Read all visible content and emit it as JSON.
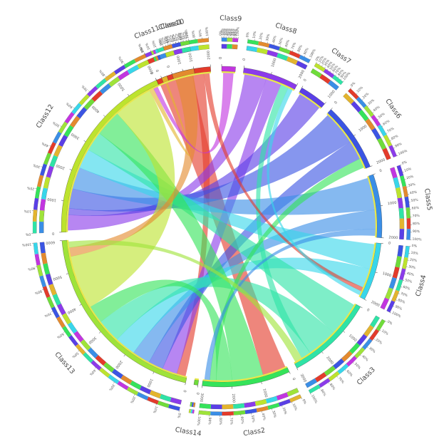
{
  "chart_data": {
    "type": "chord",
    "title": "",
    "segments": [
      {
        "name": "Class1",
        "color": "#e33b2b",
        "scale_max": 2000,
        "ticks": [
          "0",
          "1000",
          "2000"
        ]
      },
      {
        "name": "Class9",
        "color": "#c235e0",
        "scale_max": 0,
        "ticks": [
          "0"
        ]
      },
      {
        "name": "Class8",
        "color": "#8b3bea",
        "scale_max": 2000,
        "ticks": [
          "0",
          "1000",
          "2000"
        ]
      },
      {
        "name": "Class7",
        "color": "#5a3fe6",
        "scale_max": 1000,
        "ticks": [
          "0",
          "1000"
        ]
      },
      {
        "name": "Class6",
        "color": "#3b55e3",
        "scale_max": 2000,
        "ticks": [
          "0",
          "1000",
          "2000"
        ]
      },
      {
        "name": "Class5",
        "color": "#3a8ee6",
        "scale_max": 2000,
        "ticks": [
          "0",
          "1000",
          "2000"
        ]
      },
      {
        "name": "Class4",
        "color": "#38d6ea",
        "scale_max": 2000,
        "ticks": [
          "0",
          "1000",
          "2000"
        ]
      },
      {
        "name": "Class3",
        "color": "#2fe3a6",
        "scale_max": 3000,
        "ticks": [
          "0",
          "1000",
          "2000",
          "3000"
        ]
      },
      {
        "name": "Class2",
        "color": "#35e35a",
        "scale_max": 3000,
        "ticks": [
          "0",
          "1000",
          "2000",
          "3000"
        ]
      },
      {
        "name": "Class14",
        "color": "#6fdc3a",
        "scale_max": 0,
        "ticks": [
          "0"
        ]
      },
      {
        "name": "Class13",
        "color": "#9fe33a",
        "scale_max": 6000,
        "ticks": [
          "0",
          "1000",
          "2000",
          "3000",
          "4000",
          "5000",
          "6000"
        ]
      },
      {
        "name": "Class12",
        "color": "#bde32e",
        "scale_max": 6000,
        "ticks": [
          "0",
          "1000",
          "2000",
          "3000",
          "4000",
          "5000",
          "6000"
        ]
      },
      {
        "name": "Class11",
        "color": "#e3b42e",
        "scale_max": 0,
        "ticks": [
          "0"
        ]
      },
      {
        "name": "Class10",
        "color": "#e38a2e",
        "scale_max": 1000,
        "ticks": [
          "0",
          "1000"
        ]
      }
    ],
    "percent_ticks": [
      "0%",
      "10%",
      "20%",
      "30%",
      "40%",
      "50%",
      "60%",
      "70%",
      "80%",
      "90%",
      "100%"
    ],
    "links": [
      {
        "source": "Class1",
        "target": "Class2",
        "value": 900
      },
      {
        "source": "Class1",
        "target": "Class13",
        "value": 300
      },
      {
        "source": "Class8",
        "target": "Class12",
        "value": 700
      },
      {
        "source": "Class8",
        "target": "Class13",
        "value": 500
      },
      {
        "source": "Class7",
        "target": "Class12",
        "value": 300
      },
      {
        "source": "Class6",
        "target": "Class12",
        "value": 900
      },
      {
        "source": "Class6",
        "target": "Class13",
        "value": 500
      },
      {
        "source": "Class5",
        "target": "Class12",
        "value": 1000
      },
      {
        "source": "Class5",
        "target": "Class13",
        "value": 600
      },
      {
        "source": "Class4",
        "target": "Class12",
        "value": 900
      },
      {
        "source": "Class4",
        "target": "Class13",
        "value": 700
      },
      {
        "source": "Class3",
        "target": "Class12",
        "value": 900
      },
      {
        "source": "Class3",
        "target": "Class13",
        "value": 800
      },
      {
        "source": "Class2",
        "target": "Class12",
        "value": 1200
      },
      {
        "source": "Class2",
        "target": "Class13",
        "value": 600
      },
      {
        "source": "Class12",
        "target": "Class13",
        "value": 1800
      },
      {
        "source": "Class10",
        "target": "Class13",
        "value": 300
      },
      {
        "source": "Class11",
        "target": "Class12",
        "value": 200
      },
      {
        "source": "Class9",
        "target": "Class12",
        "value": 200
      },
      {
        "source": "Class3",
        "target": "Class8",
        "value": 250
      },
      {
        "source": "Class2",
        "target": "Class6",
        "value": 250
      },
      {
        "source": "Class1",
        "target": "Class4",
        "value": 150
      },
      {
        "source": "Class5",
        "target": "Class2",
        "value": 200
      },
      {
        "source": "Class4",
        "target": "Class8",
        "value": 150
      },
      {
        "source": "Class13",
        "target": "Class3",
        "value": 200
      }
    ]
  }
}
